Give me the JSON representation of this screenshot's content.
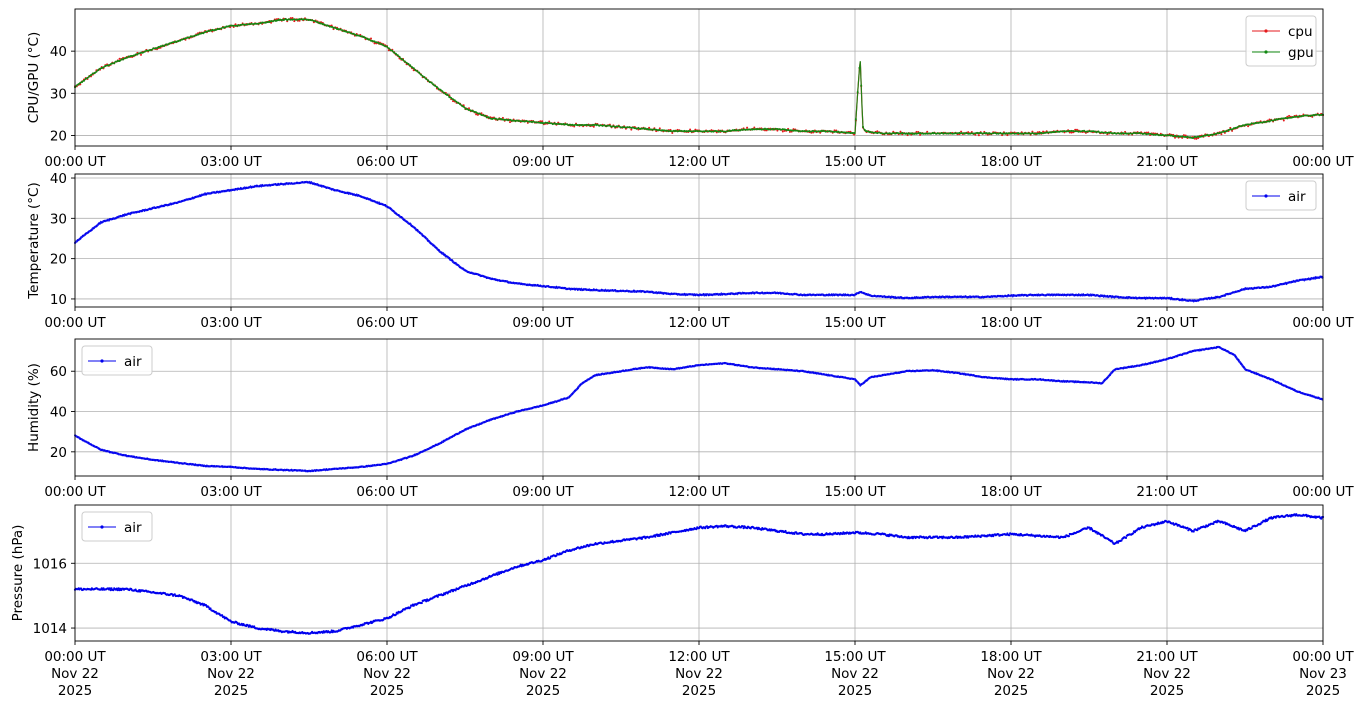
{
  "chart_data": [
    {
      "type": "line",
      "ylabel": "CPU/GPU (°C)",
      "xlabel": "",
      "xlim": [
        "00:00",
        "24:00"
      ],
      "ylim": [
        17.5,
        50
      ],
      "yticks": [
        "20",
        "30",
        "40"
      ],
      "grid": true,
      "legend": "top-right",
      "x_hours": [
        0,
        0.5,
        1,
        1.5,
        2,
        2.5,
        3,
        3.5,
        4,
        4.5,
        5,
        5.5,
        6,
        6.5,
        7,
        7.5,
        8,
        8.5,
        9,
        9.5,
        10,
        10.5,
        11,
        11.5,
        12,
        12.5,
        13,
        13.5,
        14,
        14.5,
        15,
        15.05,
        15.1,
        15.15,
        15.2,
        15.5,
        16,
        16.5,
        17,
        17.5,
        18,
        18.5,
        19,
        19.5,
        20,
        20.5,
        21,
        21.5,
        22,
        22.5,
        23,
        23.5,
        24
      ],
      "series": [
        {
          "name": "cpu",
          "color": "#e41a1c",
          "values": [
            31.5,
            36,
            38.5,
            40.5,
            42.5,
            44.5,
            46,
            46.5,
            47.5,
            47.5,
            45.5,
            43.5,
            41,
            36,
            31,
            26.5,
            24,
            23.5,
            23,
            22.5,
            22.5,
            22,
            21.5,
            21,
            21,
            21,
            21.5,
            21.5,
            21,
            21,
            20.5,
            30,
            38.5,
            22,
            21,
            20.5,
            20.5,
            20.5,
            20.5,
            20.5,
            20.5,
            20.5,
            21,
            21,
            20.5,
            20.5,
            20,
            19.5,
            20.5,
            22.5,
            23.5,
            24.5,
            25
          ]
        },
        {
          "name": "gpu",
          "color": "#118811",
          "values": [
            31.5,
            36,
            38.5,
            40.5,
            42.5,
            44.5,
            46,
            46.5,
            47.5,
            47.5,
            45.5,
            43.5,
            41,
            36,
            31,
            26.5,
            24,
            23.5,
            23,
            22.5,
            22.5,
            22,
            21.5,
            21,
            21,
            21,
            21.5,
            21.5,
            21,
            21,
            20.5,
            30,
            38.5,
            22,
            21,
            20.5,
            20.5,
            20.5,
            20.5,
            20.5,
            20.5,
            20.5,
            21,
            21,
            20.5,
            20.5,
            20,
            19.5,
            20.5,
            22.5,
            23.5,
            24.5,
            25
          ]
        }
      ]
    },
    {
      "type": "line",
      "ylabel": "Temperature (°C)",
      "xlabel": "",
      "xlim": [
        "00:00",
        "24:00"
      ],
      "ylim": [
        8,
        41
      ],
      "yticks": [
        "10",
        "20",
        "30",
        "40"
      ],
      "grid": true,
      "legend": "top-right",
      "x_hours": [
        0,
        0.5,
        1,
        1.5,
        2,
        2.5,
        3,
        3.5,
        4,
        4.5,
        5,
        5.5,
        6,
        6.5,
        7,
        7.5,
        8,
        8.5,
        9,
        9.5,
        10,
        10.5,
        11,
        11.5,
        12,
        12.5,
        13,
        13.5,
        14,
        14.5,
        15,
        15.1,
        15.3,
        16,
        16.5,
        17,
        17.5,
        18,
        18.5,
        19,
        19.5,
        20,
        20.5,
        21,
        21.5,
        22,
        22.5,
        23,
        23.5,
        24
      ],
      "series": [
        {
          "name": "air",
          "color": "#0000ee",
          "values": [
            24,
            29,
            31,
            32.5,
            34,
            36,
            37,
            38,
            38.5,
            39,
            37,
            35.5,
            33,
            28,
            22,
            17,
            15,
            13.8,
            13.2,
            12.5,
            12.2,
            12,
            11.8,
            11.2,
            11,
            11.2,
            11.5,
            11.5,
            11,
            11,
            11,
            11.8,
            10.8,
            10.2,
            10.5,
            10.5,
            10.5,
            10.8,
            11,
            11,
            11,
            10.5,
            10.2,
            10.2,
            9.5,
            10.5,
            12.5,
            13,
            14.5,
            15.5
          ]
        }
      ]
    },
    {
      "type": "line",
      "ylabel": "Humidity (%)",
      "xlabel": "",
      "xlim": [
        "00:00",
        "24:00"
      ],
      "ylim": [
        8,
        76
      ],
      "yticks": [
        "20",
        "40",
        "60"
      ],
      "grid": true,
      "legend": "top-left",
      "x_hours": [
        0,
        0.5,
        1,
        1.5,
        2,
        2.5,
        3,
        3.5,
        4,
        4.5,
        5,
        5.5,
        6,
        6.5,
        7,
        7.5,
        8,
        8.5,
        9,
        9.5,
        9.75,
        10,
        10.5,
        11,
        11.5,
        12,
        12.5,
        13,
        13.5,
        14,
        14.5,
        15,
        15.1,
        15.3,
        16,
        16.5,
        17,
        17.5,
        18,
        18.5,
        19,
        19.5,
        19.75,
        20,
        20.5,
        21,
        21.5,
        22,
        22.3,
        22.5,
        23,
        23.5,
        24
      ],
      "series": [
        {
          "name": "air",
          "color": "#0000ee",
          "values": [
            28,
            21,
            18,
            16,
            14.5,
            13,
            12.5,
            11.5,
            11,
            10.5,
            11.5,
            12.5,
            14,
            18,
            24,
            31,
            36,
            40,
            43,
            47,
            54,
            58,
            60,
            62,
            61,
            63,
            64,
            62,
            61,
            60,
            58,
            56,
            53,
            57,
            60,
            60.5,
            59,
            57,
            56,
            56,
            55,
            54.5,
            54,
            61,
            63,
            66,
            70,
            72,
            68,
            61,
            56,
            50,
            46
          ]
        }
      ]
    },
    {
      "type": "scatter",
      "ylabel": "Pressure (hPa)",
      "xlabel": "",
      "xlim": [
        "00:00",
        "24:00"
      ],
      "ylim": [
        1013.6,
        1017.8
      ],
      "yticks": [
        "1014",
        "1016"
      ],
      "xticks": [
        "00:00 UT\nNov 22\n2025",
        "03:00 UT\nNov 22\n2025",
        "06:00 UT\nNov 22\n2025",
        "09:00 UT\nNov 22\n2025",
        "12:00 UT\nNov 22\n2025",
        "15:00 UT\nNov 22\n2025",
        "18:00 UT\nNov 22\n2025",
        "21:00 UT\nNov 22\n2025",
        "00:00 UT\nNov 23\n2025"
      ],
      "grid": true,
      "legend": "top-left",
      "x_hours": [
        0,
        0.5,
        1,
        1.5,
        2,
        2.5,
        3,
        3.5,
        4,
        4.5,
        5,
        5.5,
        6,
        6.5,
        7,
        7.5,
        8,
        8.5,
        9,
        9.5,
        10,
        10.5,
        11,
        11.5,
        12,
        12.5,
        13,
        13.5,
        14,
        14.5,
        15,
        15.5,
        16,
        16.5,
        17,
        17.5,
        18,
        18.5,
        19,
        19.5,
        20,
        20.5,
        21,
        21.5,
        22,
        22.5,
        23,
        23.5,
        24
      ],
      "series": [
        {
          "name": "air",
          "color": "#0000ee",
          "values": [
            1015.2,
            1015.2,
            1015.2,
            1015.1,
            1015.0,
            1014.7,
            1014.2,
            1014.0,
            1013.9,
            1013.85,
            1013.9,
            1014.1,
            1014.3,
            1014.7,
            1015.0,
            1015.3,
            1015.6,
            1015.9,
            1016.1,
            1016.4,
            1016.6,
            1016.7,
            1016.8,
            1016.95,
            1017.1,
            1017.15,
            1017.1,
            1017.0,
            1016.9,
            1016.9,
            1016.95,
            1016.9,
            1016.8,
            1016.8,
            1016.8,
            1016.85,
            1016.9,
            1016.85,
            1016.8,
            1017.1,
            1016.6,
            1017.1,
            1017.3,
            1017.0,
            1017.3,
            1017.0,
            1017.4,
            1017.5,
            1017.4
          ]
        }
      ]
    }
  ],
  "xtick_labels": [
    "00:00 UT",
    "03:00 UT",
    "06:00 UT",
    "09:00 UT",
    "12:00 UT",
    "15:00 UT",
    "18:00 UT",
    "21:00 UT",
    "00:00 UT"
  ]
}
